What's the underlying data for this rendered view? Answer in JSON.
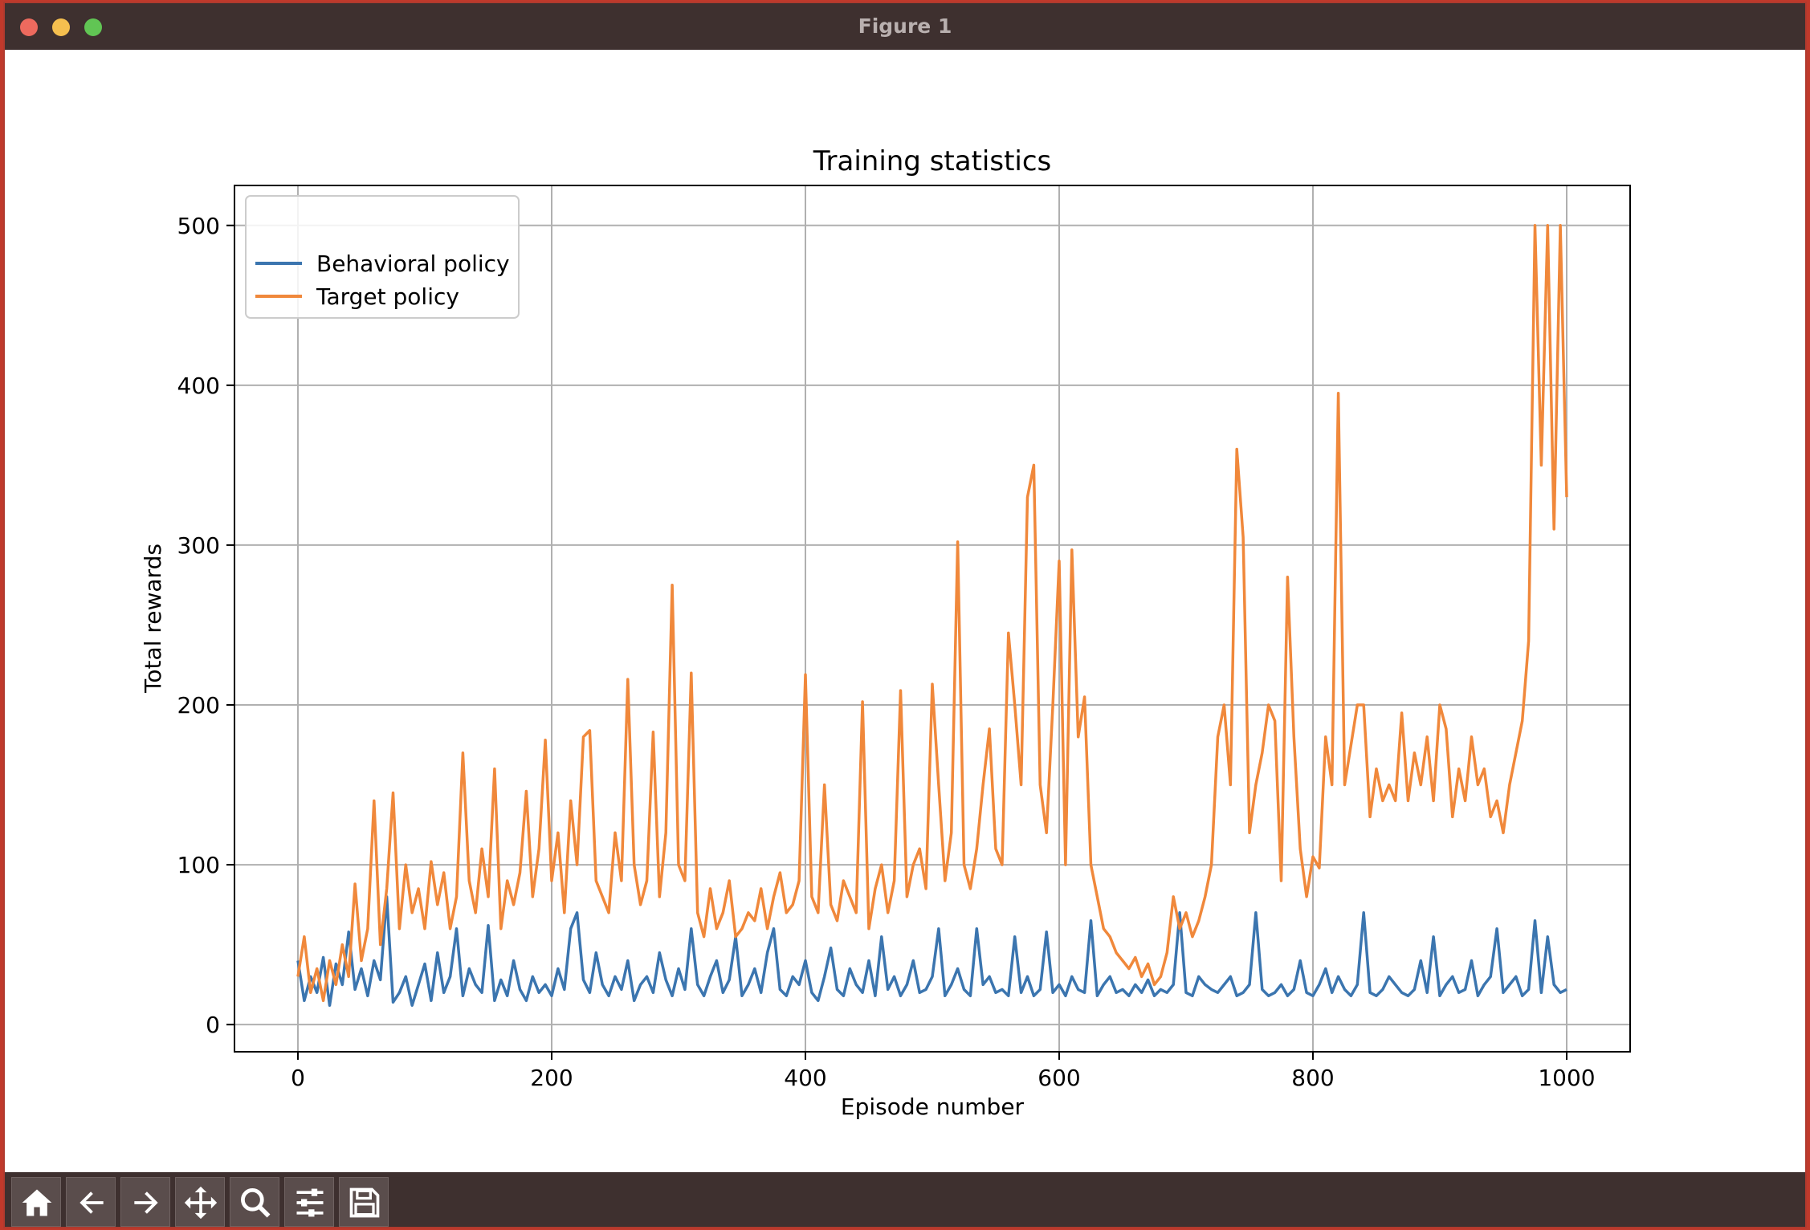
{
  "window": {
    "title": "Figure 1"
  },
  "toolbar": {
    "buttons": [
      {
        "name": "home-icon"
      },
      {
        "name": "back-arrow-icon"
      },
      {
        "name": "forward-arrow-icon"
      },
      {
        "name": "pan-icon"
      },
      {
        "name": "zoom-icon"
      },
      {
        "name": "configure-subplots-icon"
      },
      {
        "name": "save-icon"
      }
    ]
  },
  "chart_data": {
    "type": "line",
    "title": "Training statistics",
    "xlabel": "Episode number",
    "ylabel": "Total rewards",
    "xlim": [
      -50,
      1050
    ],
    "ylim": [
      -17,
      525
    ],
    "xticks": [
      "0",
      "200",
      "400",
      "600",
      "800",
      "1000"
    ],
    "xtick_values": [
      0,
      200,
      400,
      600,
      800,
      1000
    ],
    "yticks": [
      "0",
      "100",
      "200",
      "300",
      "400",
      "500"
    ],
    "ytick_values": [
      0,
      100,
      200,
      300,
      400,
      500
    ],
    "grid": true,
    "legend_placement": "top-left",
    "series": [
      {
        "name": "Behavioral policy",
        "color": "#3b75af",
        "x": [
          0,
          5,
          10,
          15,
          20,
          25,
          30,
          35,
          40,
          45,
          50,
          55,
          60,
          65,
          70,
          75,
          80,
          85,
          90,
          95,
          100,
          105,
          110,
          115,
          120,
          125,
          130,
          135,
          140,
          145,
          150,
          155,
          160,
          165,
          170,
          175,
          180,
          185,
          190,
          195,
          200,
          205,
          210,
          215,
          220,
          225,
          230,
          235,
          240,
          245,
          250,
          255,
          260,
          265,
          270,
          275,
          280,
          285,
          290,
          295,
          300,
          305,
          310,
          315,
          320,
          325,
          330,
          335,
          340,
          345,
          350,
          355,
          360,
          365,
          370,
          375,
          380,
          385,
          390,
          395,
          400,
          405,
          410,
          415,
          420,
          425,
          430,
          435,
          440,
          445,
          450,
          455,
          460,
          465,
          470,
          475,
          480,
          485,
          490,
          495,
          500,
          505,
          510,
          515,
          520,
          525,
          530,
          535,
          540,
          545,
          550,
          555,
          560,
          565,
          570,
          575,
          580,
          585,
          590,
          595,
          600,
          605,
          610,
          615,
          620,
          625,
          630,
          635,
          640,
          645,
          650,
          655,
          660,
          665,
          670,
          675,
          680,
          685,
          690,
          695,
          700,
          705,
          710,
          715,
          720,
          725,
          730,
          735,
          740,
          745,
          750,
          755,
          760,
          765,
          770,
          775,
          780,
          785,
          790,
          795,
          800,
          805,
          810,
          815,
          820,
          825,
          830,
          835,
          840,
          845,
          850,
          855,
          860,
          865,
          870,
          875,
          880,
          885,
          890,
          895,
          900,
          905,
          910,
          915,
          920,
          925,
          930,
          935,
          940,
          945,
          950,
          955,
          960,
          965,
          970,
          975,
          980,
          985,
          990,
          995,
          1000
        ],
        "y": [
          40,
          15,
          30,
          20,
          42,
          12,
          38,
          25,
          58,
          22,
          35,
          18,
          40,
          28,
          80,
          14,
          20,
          30,
          12,
          25,
          38,
          15,
          45,
          20,
          30,
          60,
          18,
          35,
          25,
          20,
          62,
          15,
          28,
          18,
          40,
          22,
          15,
          30,
          20,
          25,
          18,
          35,
          22,
          60,
          70,
          28,
          20,
          45,
          25,
          18,
          30,
          22,
          40,
          15,
          25,
          30,
          20,
          45,
          28,
          18,
          35,
          22,
          60,
          25,
          18,
          30,
          40,
          20,
          28,
          55,
          18,
          25,
          35,
          20,
          45,
          60,
          22,
          18,
          30,
          25,
          40,
          20,
          15,
          30,
          48,
          22,
          18,
          35,
          25,
          20,
          40,
          18,
          55,
          22,
          30,
          18,
          25,
          40,
          20,
          22,
          30,
          60,
          18,
          25,
          35,
          22,
          18,
          60,
          25,
          30,
          20,
          22,
          18,
          55,
          20,
          30,
          18,
          22,
          58,
          20,
          25,
          18,
          30,
          22,
          20,
          65,
          18,
          25,
          30,
          20,
          22,
          18,
          25,
          20,
          28,
          18,
          22,
          20,
          25,
          70,
          20,
          18,
          30,
          25,
          22,
          20,
          25,
          30,
          18,
          20,
          25,
          70,
          22,
          18,
          20,
          25,
          18,
          22,
          40,
          20,
          18,
          25,
          35,
          20,
          30,
          22,
          18,
          25,
          70,
          20,
          18,
          22,
          30,
          25,
          20,
          18,
          22,
          40,
          20,
          55,
          18,
          25,
          30,
          20,
          22,
          40,
          18,
          25,
          30,
          60,
          20,
          25,
          30,
          18,
          22,
          65,
          20,
          55,
          25,
          20,
          22
        ]
      },
      {
        "name": "Target policy",
        "color": "#f0883b",
        "x": [
          0,
          5,
          10,
          15,
          20,
          25,
          30,
          35,
          40,
          45,
          50,
          55,
          60,
          65,
          70,
          75,
          80,
          85,
          90,
          95,
          100,
          105,
          110,
          115,
          120,
          125,
          130,
          135,
          140,
          145,
          150,
          155,
          160,
          165,
          170,
          175,
          180,
          185,
          190,
          195,
          200,
          205,
          210,
          215,
          220,
          225,
          230,
          235,
          240,
          245,
          250,
          255,
          260,
          265,
          270,
          275,
          280,
          285,
          290,
          295,
          300,
          305,
          310,
          315,
          320,
          325,
          330,
          335,
          340,
          345,
          350,
          355,
          360,
          365,
          370,
          375,
          380,
          385,
          390,
          395,
          400,
          405,
          410,
          415,
          420,
          425,
          430,
          435,
          440,
          445,
          450,
          455,
          460,
          465,
          470,
          475,
          480,
          485,
          490,
          495,
          500,
          505,
          510,
          515,
          520,
          525,
          530,
          535,
          540,
          545,
          550,
          555,
          560,
          565,
          570,
          575,
          580,
          585,
          590,
          595,
          600,
          605,
          610,
          615,
          620,
          625,
          630,
          635,
          640,
          645,
          650,
          655,
          660,
          665,
          670,
          675,
          680,
          685,
          690,
          695,
          700,
          705,
          710,
          715,
          720,
          725,
          730,
          735,
          740,
          745,
          750,
          755,
          760,
          765,
          770,
          775,
          780,
          785,
          790,
          795,
          800,
          805,
          810,
          815,
          820,
          825,
          830,
          835,
          840,
          845,
          850,
          855,
          860,
          865,
          870,
          875,
          880,
          885,
          890,
          895,
          900,
          905,
          910,
          915,
          920,
          925,
          930,
          935,
          940,
          945,
          950,
          955,
          960,
          965,
          970,
          975,
          980,
          985,
          990,
          995,
          1000
        ],
        "y": [
          30,
          55,
          20,
          35,
          15,
          40,
          25,
          50,
          30,
          88,
          40,
          60,
          140,
          50,
          85,
          145,
          60,
          100,
          70,
          85,
          60,
          102,
          75,
          95,
          60,
          80,
          170,
          90,
          70,
          110,
          80,
          160,
          60,
          90,
          75,
          95,
          146,
          80,
          110,
          178,
          90,
          120,
          70,
          140,
          100,
          180,
          184,
          90,
          80,
          70,
          120,
          90,
          216,
          100,
          75,
          90,
          183,
          80,
          120,
          275,
          100,
          90,
          220,
          70,
          55,
          85,
          60,
          70,
          90,
          55,
          60,
          70,
          65,
          85,
          60,
          80,
          95,
          70,
          75,
          90,
          219,
          80,
          70,
          150,
          75,
          65,
          90,
          80,
          70,
          202,
          60,
          85,
          100,
          70,
          90,
          209,
          80,
          100,
          110,
          85,
          213,
          150,
          90,
          120,
          302,
          100,
          85,
          110,
          150,
          185,
          110,
          100,
          245,
          200,
          150,
          330,
          350,
          150,
          120,
          200,
          290,
          100,
          297,
          180,
          205,
          100,
          80,
          60,
          55,
          45,
          40,
          35,
          42,
          30,
          38,
          25,
          30,
          45,
          80,
          60,
          70,
          55,
          65,
          80,
          100,
          180,
          200,
          150,
          360,
          305,
          120,
          150,
          170,
          200,
          190,
          90,
          280,
          180,
          110,
          80,
          105,
          98,
          180,
          150,
          395,
          150,
          175,
          200,
          200,
          130,
          160,
          140,
          150,
          140,
          195,
          140,
          170,
          150,
          180,
          140,
          200,
          185,
          130,
          160,
          140,
          180,
          150,
          160,
          130,
          140,
          120,
          150,
          170,
          190,
          240,
          500,
          350,
          500,
          310,
          500,
          330
        ]
      }
    ]
  }
}
